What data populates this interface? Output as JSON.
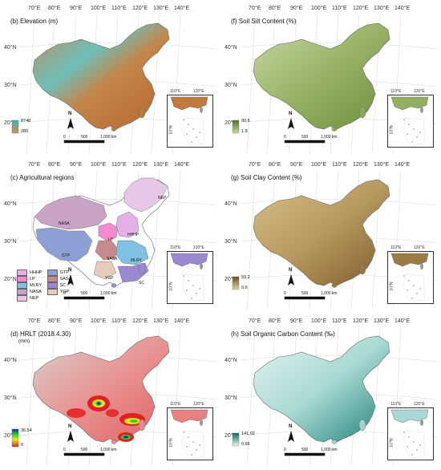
{
  "panels": {
    "b": {
      "title": "(b) Elevation (m)",
      "legend_max": "8748",
      "legend_min": "280"
    },
    "f": {
      "title": "(f) Soil Silt Content (%)",
      "legend_max": "90.6",
      "legend_min": "1.8"
    },
    "c": {
      "title": "(c) Agricultural regions"
    },
    "g": {
      "title": "(g) Soil Clay Content (%)",
      "legend_max": "59.2",
      "legend_min": "0.6"
    },
    "d": {
      "title": "(d) HRLT (2018.4.30)",
      "unit": "(mm)",
      "legend_max": "36.54",
      "legend_min": "0"
    },
    "h": {
      "title": "(h) Soil Organic Carbon Content (‰)",
      "legend_max": "141.02",
      "legend_min": "0.66"
    }
  },
  "lon_labels": [
    "70°E",
    "80°E",
    "90°E",
    "100°E",
    "110°E",
    "120°E",
    "130°E",
    "140°E"
  ],
  "lat_labels": [
    "40°N",
    "30°N",
    "20°N"
  ],
  "inset_labels": {
    "lon1": "110°E",
    "lon2": "120°E",
    "lat": "10°N"
  },
  "north_label": "N",
  "scale": {
    "zero": "0",
    "mid": "500",
    "end": "1,000 km"
  },
  "regions": [
    {
      "code": "HHHP",
      "color": "#e3b1e6"
    },
    {
      "code": "GTP",
      "color": "#8e9fd6"
    },
    {
      "code": "LP",
      "color": "#f58ad0"
    },
    {
      "code": "SASA",
      "color": "#c98a8e"
    },
    {
      "code": "MLRY",
      "color": "#7fc0e3"
    },
    {
      "code": "SC",
      "color": "#9a88d1"
    },
    {
      "code": "NASA",
      "color": "#c9a3c6"
    },
    {
      "code": "YGP",
      "color": "#e6cbbd"
    },
    {
      "code": "NEP",
      "color": "#e6c8e6"
    }
  ],
  "colors": {
    "elev_high": "#3db3b3",
    "elev_low": "#b86a2a",
    "silt_high": "#4b7a22",
    "silt_low": "#b4cc8a",
    "clay_high": "#6e4a1c",
    "clay_low": "#d9c89a",
    "soc_high": "#0d6a63",
    "soc_low": "#e3f3f1"
  }
}
